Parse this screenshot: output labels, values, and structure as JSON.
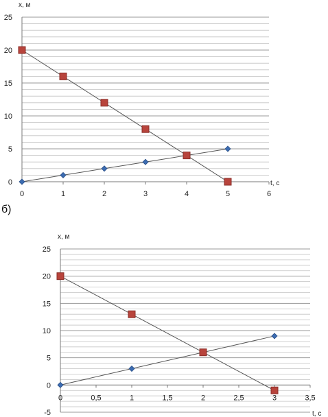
{
  "panels": [
    {
      "label": ""
    },
    {
      "label": "б)"
    }
  ],
  "chart_data": [
    {
      "type": "line",
      "title": "",
      "xlabel": "t, c",
      "ylabel": "x, м",
      "xlim": [
        0,
        6
      ],
      "ylim": [
        0,
        25
      ],
      "xticks": [
        "0",
        "1",
        "2",
        "3",
        "4",
        "5",
        "6"
      ],
      "yticks": [
        "0",
        "5",
        "10",
        "15",
        "20",
        "25"
      ],
      "grid": "horizontal",
      "series": [
        {
          "marker": "diamond",
          "color": "#3c6cb2",
          "x": [
            0,
            1,
            2,
            3,
            4,
            5
          ],
          "y": [
            0,
            1,
            2,
            3,
            4,
            5
          ]
        },
        {
          "marker": "square",
          "color": "#b8443c",
          "x": [
            0,
            1,
            2,
            3,
            4,
            5
          ],
          "y": [
            20,
            16,
            12,
            8,
            4,
            0
          ]
        }
      ]
    },
    {
      "type": "line",
      "title": "",
      "xlabel": "t, c",
      "ylabel": "x, м",
      "xlim": [
        0,
        3.5
      ],
      "ylim": [
        -5,
        25
      ],
      "xticks": [
        "0",
        "0,5",
        "1",
        "1,5",
        "2",
        "2,5",
        "3",
        "3,5"
      ],
      "yticks": [
        "-5",
        "0",
        "5",
        "10",
        "15",
        "20",
        "25"
      ],
      "grid": "horizontal",
      "series": [
        {
          "marker": "diamond",
          "color": "#3c6cb2",
          "x": [
            0,
            1,
            2,
            3
          ],
          "y": [
            0,
            3,
            6,
            9
          ]
        },
        {
          "marker": "square",
          "color": "#b8443c",
          "x": [
            0,
            1,
            2,
            3
          ],
          "y": [
            20,
            13,
            6,
            -1
          ]
        }
      ]
    }
  ]
}
